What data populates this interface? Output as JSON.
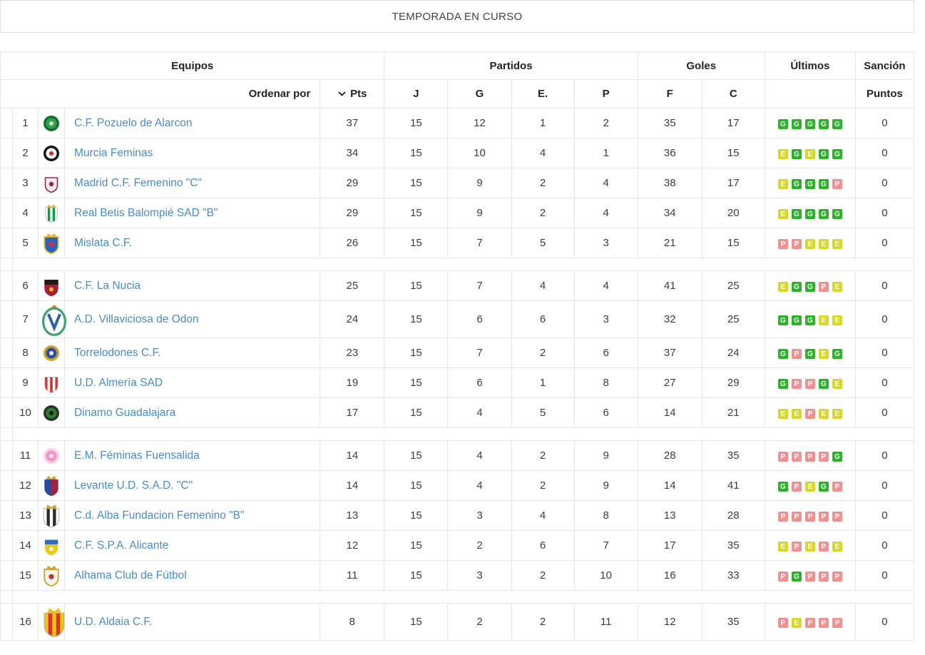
{
  "title": "TEMPORADA EN CURSO",
  "table": {
    "groups": {
      "equipos": "Equipos",
      "partidos": "Partidos",
      "goles": "Goles",
      "ultimos": "Últimos",
      "sancion": "Sanción"
    },
    "columns": {
      "ordenar": "Ordenar por",
      "pts": "Pts",
      "j": "J",
      "g": "G",
      "e": "E.",
      "p": "P",
      "f": "F",
      "c": "C",
      "puntos": "Puntos"
    },
    "form_colors": {
      "G": "#2cb32a",
      "E": "#d8d825",
      "P": "#f19090"
    },
    "link_color": "#4a8bc9",
    "border_color": "#e4e8ec",
    "separators_after": [
      5,
      10,
      15
    ],
    "rows": [
      {
        "pos": 1,
        "team": "C.F. Pozuelo de Alarcon",
        "pts": 37,
        "j": 15,
        "g": 12,
        "e": 1,
        "p": 2,
        "f": 35,
        "c": 17,
        "form": [
          "G",
          "G",
          "G",
          "G",
          "G"
        ],
        "sancion": 0,
        "crest": {
          "shape": "circle",
          "colors": [
            "#186c30",
            "#2fa14e",
            "#cfe8d4"
          ],
          "size": 26
        }
      },
      {
        "pos": 2,
        "team": "Murcia Feminas",
        "pts": 34,
        "j": 15,
        "g": 10,
        "e": 4,
        "p": 1,
        "f": 36,
        "c": 15,
        "form": [
          "E",
          "G",
          "E",
          "G",
          "G"
        ],
        "sancion": 0,
        "crest": {
          "shape": "circle",
          "colors": [
            "#141414",
            "#ffffff",
            "#d62323"
          ],
          "size": 26
        }
      },
      {
        "pos": 3,
        "team": "Madrid C.F. Femenino \"C\"",
        "pts": 29,
        "j": 15,
        "g": 9,
        "e": 2,
        "p": 4,
        "f": 38,
        "c": 17,
        "form": [
          "E",
          "G",
          "G",
          "G",
          "P"
        ],
        "sancion": 0,
        "crest": {
          "shape": "shield",
          "colors": [
            "#f5e9ed",
            "#8c2f44",
            "#8c2f44"
          ],
          "size": 26
        }
      },
      {
        "pos": 4,
        "team": "Real Betis Balompié SAD \"B\"",
        "pts": 29,
        "j": 15,
        "g": 9,
        "e": 2,
        "p": 4,
        "f": 34,
        "c": 20,
        "form": [
          "E",
          "G",
          "G",
          "G",
          "G"
        ],
        "sancion": 0,
        "crest": {
          "shape": "stripes",
          "colors": [
            "#ffffff",
            "#109c43"
          ],
          "crown": "#e6b92e",
          "size": 26
        }
      },
      {
        "pos": 5,
        "team": "Mislata C.F.",
        "pts": 26,
        "j": 15,
        "g": 7,
        "e": 5,
        "p": 3,
        "f": 21,
        "c": 15,
        "form": [
          "P",
          "P",
          "E",
          "E",
          "E"
        ],
        "sancion": 0,
        "crest": {
          "shape": "shield",
          "colors": [
            "#2a62c0",
            "#e6b92e",
            "#d03030"
          ],
          "crown": "#e6b92e",
          "size": 30
        }
      },
      {
        "pos": 6,
        "team": "C.F. La Nucia",
        "pts": 25,
        "j": 15,
        "g": 7,
        "e": 4,
        "p": 4,
        "f": 41,
        "c": 25,
        "form": [
          "E",
          "G",
          "G",
          "P",
          "E"
        ],
        "sancion": 0,
        "crest": {
          "shape": "chief",
          "colors": [
            "#a81e31",
            "#1d1a1a",
            "#e6b92e"
          ],
          "size": 30
        }
      },
      {
        "pos": 7,
        "team": "A.D. Villaviciosa de Odon",
        "pts": 24,
        "j": 15,
        "g": 6,
        "e": 6,
        "p": 3,
        "f": 32,
        "c": 25,
        "form": [
          "G",
          "G",
          "G",
          "E",
          "E"
        ],
        "sancion": 0,
        "crest": {
          "shape": "oval",
          "colors": [
            "#41a173",
            "#2b62ab",
            "#e08a28"
          ],
          "size": 44
        }
      },
      {
        "pos": 8,
        "team": "Torrelodones C.F.",
        "pts": 23,
        "j": 15,
        "g": 7,
        "e": 2,
        "p": 6,
        "f": 37,
        "c": 24,
        "form": [
          "G",
          "P",
          "G",
          "E",
          "G"
        ],
        "sancion": 0,
        "crest": {
          "shape": "circle",
          "colors": [
            "#caa42c",
            "#2c4da0",
            "#e8e8f5"
          ],
          "size": 26
        }
      },
      {
        "pos": 9,
        "team": "U.D. Almería SAD",
        "pts": 19,
        "j": 15,
        "g": 6,
        "e": 1,
        "p": 8,
        "f": 27,
        "c": 29,
        "form": [
          "G",
          "P",
          "P",
          "G",
          "E"
        ],
        "sancion": 0,
        "crest": {
          "shape": "stripes",
          "colors": [
            "#d63333",
            "#ffffff"
          ],
          "size": 28
        }
      },
      {
        "pos": 10,
        "team": "Dinamo Guadalajara",
        "pts": 17,
        "j": 15,
        "g": 4,
        "e": 5,
        "p": 6,
        "f": 14,
        "c": 21,
        "form": [
          "E",
          "E",
          "P",
          "E",
          "E"
        ],
        "sancion": 0,
        "crest": {
          "shape": "circle",
          "colors": [
            "#27332a",
            "#2f7d35",
            "#121a12"
          ],
          "size": 26
        }
      },
      {
        "pos": 11,
        "team": "E.M. Féminas Fuensalida",
        "pts": 14,
        "j": 15,
        "g": 4,
        "e": 2,
        "p": 9,
        "f": 28,
        "c": 35,
        "form": [
          "P",
          "P",
          "P",
          "P",
          "G"
        ],
        "sancion": 0,
        "crest": {
          "shape": "circle",
          "colors": [
            "#f8cfe5",
            "#f292c6",
            "#fdeaf4"
          ],
          "size": 26
        }
      },
      {
        "pos": 12,
        "team": "Levante U.D. S.A.D. \"C\"",
        "pts": 14,
        "j": 15,
        "g": 4,
        "e": 2,
        "p": 9,
        "f": 14,
        "c": 41,
        "form": [
          "G",
          "P",
          "E",
          "G",
          "P"
        ],
        "sancion": 0,
        "crest": {
          "shape": "halves",
          "colors": [
            "#274b9e",
            "#9e2340"
          ],
          "crown": "#caa42c",
          "size": 30
        }
      },
      {
        "pos": 13,
        "team": "C.d. Alba Fundacion Femenino \"B\"",
        "pts": 13,
        "j": 15,
        "g": 3,
        "e": 4,
        "p": 8,
        "f": 13,
        "c": 28,
        "form": [
          "P",
          "P",
          "P",
          "P",
          "P"
        ],
        "sancion": 0,
        "crest": {
          "shape": "stripes",
          "colors": [
            "#ffffff",
            "#2b2b2b"
          ],
          "crown": "#caa42c",
          "size": 34
        }
      },
      {
        "pos": 14,
        "team": "C.F. S.P.A. Alicante",
        "pts": 12,
        "j": 15,
        "g": 2,
        "e": 6,
        "p": 7,
        "f": 17,
        "c": 35,
        "form": [
          "E",
          "P",
          "E",
          "P",
          "E"
        ],
        "sancion": 0,
        "crest": {
          "shape": "chief",
          "colors": [
            "#edc91f",
            "#2e6fc4",
            "#ffffff"
          ],
          "size": 28
        }
      },
      {
        "pos": 15,
        "team": "Alhama Club de Fútbol",
        "pts": 11,
        "j": 15,
        "g": 3,
        "e": 2,
        "p": 10,
        "f": 16,
        "c": 33,
        "form": [
          "P",
          "G",
          "P",
          "P",
          "P"
        ],
        "sancion": 0,
        "crest": {
          "shape": "shield",
          "colors": [
            "#f6f4ea",
            "#caa42c",
            "#c23434"
          ],
          "crown": "#caa42c",
          "size": 30
        }
      },
      {
        "pos": 16,
        "team": "U.D. Aldaia C.F.",
        "pts": 8,
        "j": 15,
        "g": 2,
        "e": 2,
        "p": 11,
        "f": 12,
        "c": 35,
        "form": [
          "P",
          "E",
          "P",
          "P",
          "P"
        ],
        "sancion": 0,
        "crest": {
          "shape": "stripes",
          "colors": [
            "#f1c50e",
            "#d63333"
          ],
          "crown": "#e8c41a",
          "size": 44
        }
      }
    ]
  }
}
